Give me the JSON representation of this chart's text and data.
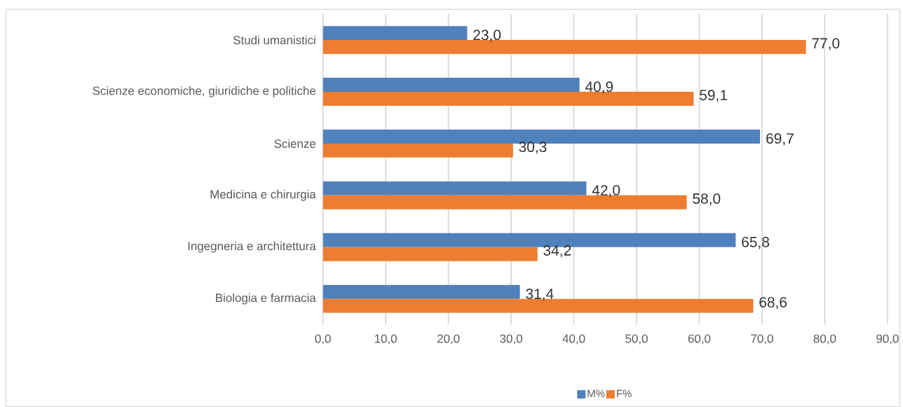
{
  "chart_data": {
    "type": "bar",
    "orientation": "horizontal",
    "categories": [
      "Studi umanistici",
      "Scienze economiche, giuridiche e politiche",
      "Scienze",
      "Medicina e chirurgia",
      "Ingegneria e architettura",
      "Biologia e farmacia"
    ],
    "series": [
      {
        "name": "M%",
        "color": "#4f81bd",
        "values": [
          23.0,
          40.9,
          69.7,
          42.0,
          65.8,
          31.4
        ],
        "value_labels": [
          "23,0",
          "40,9",
          "69,7",
          "42,0",
          "65,8",
          "31,4"
        ]
      },
      {
        "name": "F%",
        "color": "#ed7d31",
        "values": [
          77.0,
          59.1,
          30.3,
          58.0,
          34.2,
          68.6
        ],
        "value_labels": [
          "77,0",
          "59,1",
          "30,3",
          "58,0",
          "34,2",
          "68,6"
        ]
      }
    ],
    "xlim": [
      0,
      90
    ],
    "xticks": [
      {
        "value": 0,
        "label": "0,0"
      },
      {
        "value": 10,
        "label": "10,0"
      },
      {
        "value": 20,
        "label": "20,0"
      },
      {
        "value": 30,
        "label": "30,0"
      },
      {
        "value": 40,
        "label": "40,0"
      },
      {
        "value": 50,
        "label": "50,0"
      },
      {
        "value": 60,
        "label": "60,0"
      },
      {
        "value": 70,
        "label": "70,0"
      },
      {
        "value": 80,
        "label": "80,0"
      },
      {
        "value": 90,
        "label": "90,0"
      }
    ],
    "grid": "x",
    "legend": "bottom"
  }
}
